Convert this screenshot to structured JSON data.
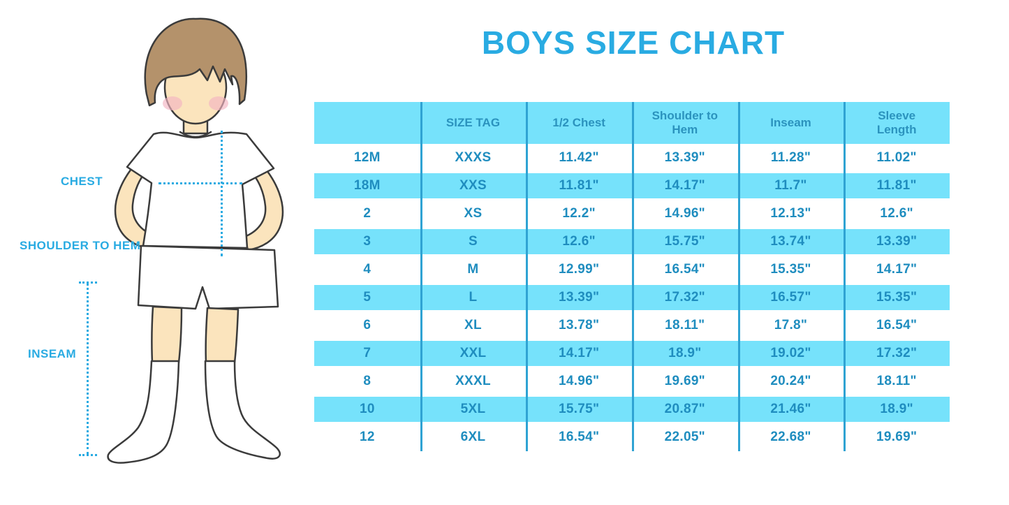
{
  "title": {
    "text": "BOYS SIZE CHART"
  },
  "colors": {
    "title_text": "#29ABE2",
    "label_text": "#29ABE2",
    "dotted_line": "#29ABE2",
    "table_header_bg": "#76E2FB",
    "table_alt_row_bg": "#76E2FB",
    "table_row_bg": "#FFFFFF",
    "table_header_text": "#2B93BE",
    "table_cell_text": "#1F8DBF",
    "table_grid_line": "#2FA3D3"
  },
  "figure": {
    "description": "boy-illustration-with-measurement-lines",
    "labels": {
      "chest": "CHEST",
      "shoulder_to_hem": "SHOULDER TO HEM",
      "inseam": "INSEAM"
    }
  },
  "chart_data": {
    "type": "table",
    "title": "BOYS SIZE CHART",
    "columns": [
      "",
      "SIZE TAG",
      "1/2 Chest",
      "Shoulder to Hem",
      "Inseam",
      "Sleeve Length"
    ],
    "rows": [
      [
        "12M",
        "XXXS",
        "11.42\"",
        "13.39\"",
        "11.28\"",
        "11.02\""
      ],
      [
        "18M",
        "XXS",
        "11.81\"",
        "14.17\"",
        "11.7\"",
        "11.81\""
      ],
      [
        "2",
        "XS",
        "12.2\"",
        "14.96\"",
        "12.13\"",
        "12.6\""
      ],
      [
        "3",
        "S",
        "12.6\"",
        "15.75\"",
        "13.74\"",
        "13.39\""
      ],
      [
        "4",
        "M",
        "12.99\"",
        "16.54\"",
        "15.35\"",
        "14.17\""
      ],
      [
        "5",
        "L",
        "13.39\"",
        "17.32\"",
        "16.57\"",
        "15.35\""
      ],
      [
        "6",
        "XL",
        "13.78\"",
        "18.11\"",
        "17.8\"",
        "16.54\""
      ],
      [
        "7",
        "XXL",
        "14.17\"",
        "18.9\"",
        "19.02\"",
        "17.32\""
      ],
      [
        "8",
        "XXXL",
        "14.96\"",
        "19.69\"",
        "20.24\"",
        "18.11\""
      ],
      [
        "10",
        "5XL",
        "15.75\"",
        "20.87\"",
        "21.46\"",
        "18.9\""
      ],
      [
        "12",
        "6XL",
        "16.54\"",
        "22.05\"",
        "22.68\"",
        "19.69\""
      ]
    ],
    "layout": {
      "header_row": true,
      "alternating_rows": "white/cyan",
      "grid": "vertical-lines-only"
    }
  }
}
